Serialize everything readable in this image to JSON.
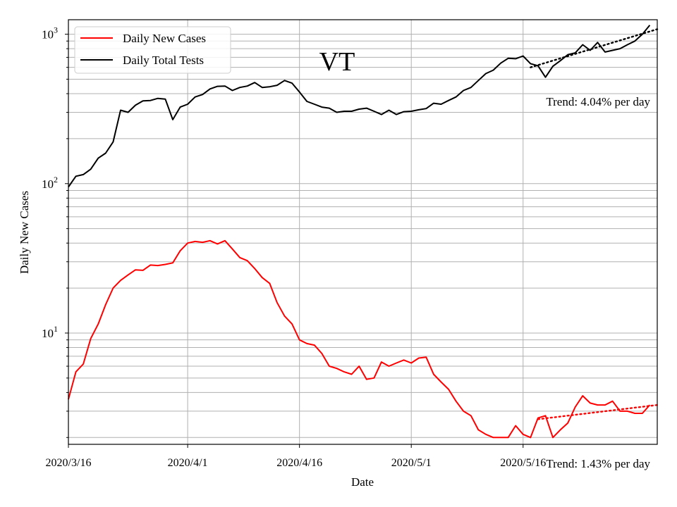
{
  "chart_data": {
    "type": "line",
    "title": "VT",
    "xlabel": "Date",
    "ylabel": "Daily New Cases",
    "x_start": "2020-03-16",
    "x_end": "2020-06-03",
    "x_ticks": [
      {
        "date": "2020-03-16",
        "label": "2020/3/16"
      },
      {
        "date": "2020-04-01",
        "label": "2020/4/1"
      },
      {
        "date": "2020-04-16",
        "label": "2020/4/16"
      },
      {
        "date": "2020-05-01",
        "label": "2020/5/1"
      },
      {
        "date": "2020-05-16",
        "label": "2020/5/16"
      }
    ],
    "y_scale": "log",
    "ylim": [
      1.8,
      1250
    ],
    "y_ticks": [
      {
        "value": 10,
        "label": "10",
        "sup": "1"
      },
      {
        "value": 100,
        "label": "10",
        "sup": "2"
      },
      {
        "value": 1000,
        "label": "10",
        "sup": "3"
      }
    ],
    "grid": true,
    "legend_position": "top-left",
    "series": [
      {
        "name": "Daily New Cases",
        "color": "#ff0000",
        "values": [
          3.6,
          5.5,
          6.2,
          9.2,
          11.5,
          15.5,
          20,
          22.5,
          24.5,
          26.5,
          26.3,
          28.5,
          28.3,
          28.8,
          29.5,
          35.5,
          40,
          41,
          40.5,
          41.5,
          39.5,
          41.5,
          36.5,
          32,
          30.5,
          27,
          23.5,
          21.5,
          16,
          13,
          11.5,
          9,
          8.5,
          8.3,
          7.3,
          6,
          5.8,
          5.5,
          5.3,
          6,
          4.9,
          5,
          6.4,
          6,
          6.3,
          6.6,
          6.3,
          6.8,
          6.9,
          5.3,
          4.7,
          4.2,
          3.5,
          3,
          2.8,
          2.25,
          2.1,
          2,
          2,
          2,
          2.4,
          2.1,
          2,
          2.7,
          2.8,
          2,
          2.25,
          2.5,
          3.2,
          3.8,
          3.4,
          3.3,
          3.3,
          3.5,
          3,
          3,
          2.9,
          2.9,
          3.3
        ]
      },
      {
        "name": "Daily Total Tests",
        "color": "#000000",
        "values": [
          95,
          112,
          115,
          125,
          148,
          160,
          190,
          310,
          300,
          335,
          358,
          360,
          372,
          368,
          268,
          325,
          340,
          380,
          395,
          430,
          448,
          450,
          420,
          440,
          450,
          475,
          440,
          445,
          455,
          490,
          470,
          410,
          355,
          340,
          325,
          320,
          300,
          305,
          305,
          315,
          320,
          305,
          290,
          310,
          290,
          303,
          305,
          312,
          318,
          345,
          340,
          360,
          380,
          420,
          440,
          490,
          545,
          575,
          640,
          690,
          685,
          715,
          635,
          615,
          515,
          610,
          665,
          730,
          750,
          850,
          780,
          880,
          760,
          780,
          800,
          850,
          900,
          1000,
          1150
        ]
      }
    ],
    "trendlines": [
      {
        "series": "Daily Total Tests",
        "color": "#000000",
        "x_start": "2020-05-17",
        "x_end": "2020-06-03",
        "y_start": 600,
        "y_end": 1080,
        "label": "Trend: 4.04% per day"
      },
      {
        "series": "Daily New Cases",
        "color": "#ff0000",
        "x_start": "2020-05-18",
        "x_end": "2020-06-03",
        "y_start": 2.65,
        "y_end": 3.3,
        "label": "Trend: 1.43% per day"
      }
    ]
  }
}
